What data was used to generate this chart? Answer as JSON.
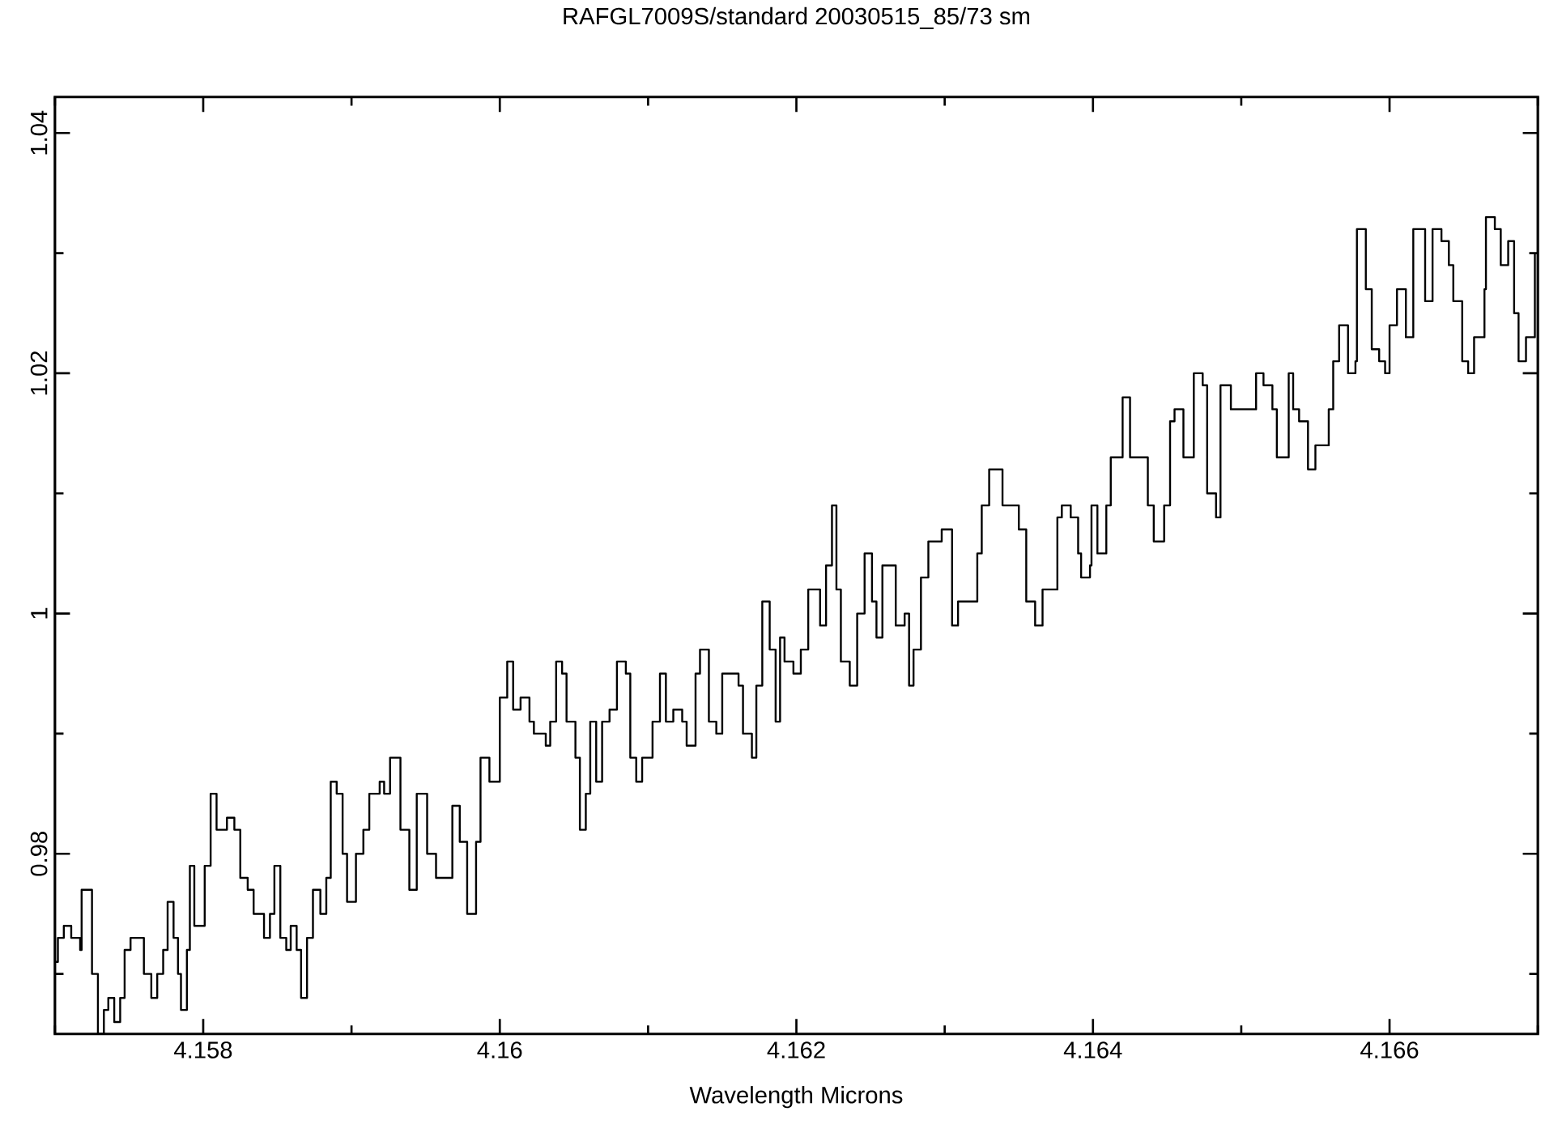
{
  "chart_data": {
    "type": "step",
    "title": "RAFGL7009S/standard  20030515_85/73  sm",
    "xlabel": "Wavelength  Microns",
    "xlim": [
      4.157,
      4.167
    ],
    "ylim": [
      0.965,
      1.043
    ],
    "xticks": [
      {
        "value": 4.157,
        "label": null
      },
      4.158,
      {
        "value": 4.159,
        "label": null
      },
      4.16,
      {
        "value": 4.161,
        "label": null
      },
      4.162,
      {
        "value": 4.163,
        "label": null
      },
      4.164,
      {
        "value": 4.165,
        "label": null
      },
      4.166,
      {
        "value": 4.167,
        "label": null
      }
    ],
    "yticks": [
      {
        "value": 0.97,
        "label": null
      },
      0.98,
      {
        "value": 0.99,
        "label": null
      },
      1,
      {
        "value": 1.01,
        "label": null
      },
      1.02,
      {
        "value": 1.03,
        "label": null
      },
      1.04
    ],
    "series": [
      {
        "color": "#000000",
        "x": [
          4.157,
          4.15702,
          4.15706,
          4.15711,
          4.15717,
          4.15718,
          4.15724,
          4.15725,
          4.15728,
          4.15729,
          4.15733,
          4.15736,
          4.1574,
          4.15744,
          4.15747,
          4.15751,
          4.15756,
          4.1576,
          4.15765,
          4.15769,
          4.15773,
          4.15776,
          4.1578,
          4.15783,
          4.15785,
          4.15789,
          4.15791,
          4.15794,
          4.15798,
          4.15801,
          4.15805,
          4.15809,
          4.15816,
          4.15821,
          4.15825,
          4.1583,
          4.15834,
          4.15841,
          4.15845,
          4.15848,
          4.15852,
          4.15856,
          4.15859,
          4.15863,
          4.15866,
          4.1587,
          4.15874,
          4.15879,
          4.15883,
          4.15886,
          4.1589,
          4.15894,
          4.15897,
          4.15903,
          4.15908,
          4.15912,
          4.15919,
          4.15922,
          4.15926,
          4.15933,
          4.15939,
          4.15944,
          4.15951,
          4.15957,
          4.15962,
          4.15968,
          4.15973,
          4.15978,
          4.15984,
          4.15987,
          4.15993,
          4.15998,
          4.16,
          4.16005,
          4.16009,
          4.16014,
          4.1602,
          4.16023,
          4.16031,
          4.16034,
          4.16038,
          4.16042,
          4.16045,
          4.16051,
          4.16054,
          4.16058,
          4.16061,
          4.16065,
          4.16069,
          4.16074,
          4.16079,
          4.16085,
          4.16088,
          4.16092,
          4.16096,
          4.16103,
          4.16108,
          4.16112,
          4.16117,
          4.16123,
          4.16126,
          4.16132,
          4.16135,
          4.16141,
          4.16146,
          4.1615,
          4.16155,
          4.16161,
          4.16164,
          4.1617,
          4.16173,
          4.16177,
          4.16182,
          4.16186,
          4.16189,
          4.16192,
          4.16198,
          4.16203,
          4.16208,
          4.16216,
          4.1622,
          4.16224,
          4.16227,
          4.1623,
          4.16236,
          4.16241,
          4.16246,
          4.16251,
          4.16254,
          4.16258,
          4.16267,
          4.16273,
          4.16276,
          4.16279,
          4.16284,
          4.16289,
          4.16298,
          4.16305,
          4.16309,
          4.16317,
          4.16322,
          4.16325,
          4.1633,
          4.16338,
          4.16339,
          4.16347,
          4.1635,
          4.16355,
          4.16361,
          4.16366,
          4.16376,
          4.16379,
          4.16385,
          4.1639,
          4.16392,
          4.16398,
          4.16399,
          4.16403,
          4.16409,
          4.16412,
          4.1642,
          4.16425,
          4.16432,
          4.16437,
          4.16441,
          4.16448,
          4.16452,
          4.16455,
          4.16461,
          4.16468,
          4.16474,
          4.16477,
          4.16483,
          4.16486,
          4.16493,
          4.16504,
          4.1651,
          4.16515,
          4.16521,
          4.16524,
          4.16532,
          4.16535,
          4.16539,
          4.16545,
          4.1655,
          4.16555,
          4.16559,
          4.16562,
          4.16566,
          4.16572,
          4.16577,
          4.16578,
          4.16584,
          4.16588,
          4.16593,
          4.16597,
          4.166,
          4.16605,
          4.16611,
          4.16616,
          4.16624,
          4.16629,
          4.16635,
          4.1664,
          4.16643,
          4.16649,
          4.16653,
          4.16657,
          4.16664,
          4.16665,
          4.16671,
          4.16675,
          4.1668,
          4.16684,
          4.16687,
          4.16692,
          4.16698
        ],
        "values": [
          0.971,
          0.973,
          0.974,
          0.973,
          0.972,
          0.977,
          0.977,
          0.97,
          0.97,
          0.965,
          0.967,
          0.968,
          0.966,
          0.968,
          0.972,
          0.973,
          0.973,
          0.97,
          0.968,
          0.97,
          0.972,
          0.976,
          0.973,
          0.97,
          0.967,
          0.972,
          0.979,
          0.974,
          0.974,
          0.979,
          0.985,
          0.982,
          0.983,
          0.982,
          0.978,
          0.977,
          0.975,
          0.973,
          0.975,
          0.979,
          0.973,
          0.972,
          0.974,
          0.972,
          0.968,
          0.973,
          0.977,
          0.975,
          0.978,
          0.986,
          0.985,
          0.98,
          0.976,
          0.98,
          0.982,
          0.985,
          0.986,
          0.985,
          0.988,
          0.982,
          0.977,
          0.985,
          0.98,
          0.978,
          0.978,
          0.984,
          0.981,
          0.975,
          0.981,
          0.988,
          0.986,
          0.986,
          0.993,
          0.996,
          0.992,
          0.993,
          0.991,
          0.99,
          0.989,
          0.991,
          0.996,
          0.995,
          0.991,
          0.988,
          0.982,
          0.985,
          0.991,
          0.986,
          0.991,
          0.992,
          0.996,
          0.995,
          0.988,
          0.986,
          0.988,
          0.991,
          0.995,
          0.991,
          0.992,
          0.991,
          0.989,
          0.995,
          0.997,
          0.991,
          0.99,
          0.995,
          0.995,
          0.994,
          0.99,
          0.988,
          0.994,
          1.001,
          0.997,
          0.991,
          0.998,
          0.996,
          0.995,
          0.997,
          1.002,
          0.999,
          1.004,
          1.009,
          1.002,
          0.996,
          0.994,
          1.0,
          1.005,
          1.001,
          0.998,
          1.004,
          0.999,
          1.0,
          0.994,
          0.997,
          1.003,
          1.006,
          1.007,
          0.999,
          1.001,
          1.001,
          1.005,
          1.009,
          1.012,
          1.012,
          1.009,
          1.009,
          1.007,
          1.001,
          0.999,
          1.002,
          1.008,
          1.009,
          1.008,
          1.005,
          1.003,
          1.004,
          1.009,
          1.005,
          1.009,
          1.013,
          1.018,
          1.013,
          1.013,
          1.009,
          1.006,
          1.009,
          1.016,
          1.017,
          1.013,
          1.02,
          1.019,
          1.01,
          1.008,
          1.019,
          1.017,
          1.017,
          1.02,
          1.019,
          1.017,
          1.013,
          1.02,
          1.017,
          1.016,
          1.012,
          1.014,
          1.014,
          1.017,
          1.021,
          1.024,
          1.02,
          1.021,
          1.032,
          1.027,
          1.022,
          1.021,
          1.02,
          1.024,
          1.027,
          1.023,
          1.032,
          1.026,
          1.032,
          1.031,
          1.029,
          1.026,
          1.021,
          1.02,
          1.023,
          1.027,
          1.033,
          1.032,
          1.029,
          1.031,
          1.025,
          1.021,
          1.023,
          1.03
        ]
      }
    ]
  }
}
